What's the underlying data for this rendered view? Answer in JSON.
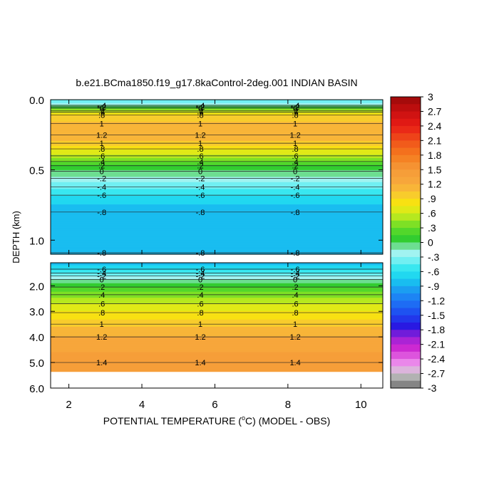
{
  "chart_data": {
    "type": "heatmap",
    "title": "b.e21.BCma1850.f19_g17.8kaControl-2deg.001 INDIAN BASIN",
    "xlabel_main": "POTENTIAL TEMPERATURE (",
    "xlabel_deg": "o",
    "xlabel_tail": "C) (MODEL - OBS)",
    "ylabel": "DEPTH (km)",
    "x_ticks": [
      "2",
      "4",
      "6",
      "8",
      "10"
    ],
    "x_tick_values": [
      2,
      4,
      6,
      8,
      10
    ],
    "xlim": [
      1.5,
      10.6
    ],
    "upper_panel": {
      "ylim": [
        0.0,
        1.1
      ],
      "y_ticks": [
        "0.0",
        "0.5",
        "1.0"
      ],
      "y_tick_values": [
        0.0,
        0.5,
        1.0
      ],
      "profile": [
        {
          "depth": 0.0,
          "value": -0.5
        },
        {
          "depth": 0.02,
          "value": -0.3
        },
        {
          "depth": 0.04,
          "value": -0.1
        },
        {
          "depth": 0.06,
          "value": 0.2
        },
        {
          "depth": 0.08,
          "value": 0.6
        },
        {
          "depth": 0.1,
          "value": 0.85
        },
        {
          "depth": 0.13,
          "value": 1.0
        },
        {
          "depth": 0.2,
          "value": 1.15
        },
        {
          "depth": 0.26,
          "value": 1.2
        },
        {
          "depth": 0.31,
          "value": 1.0
        },
        {
          "depth": 0.35,
          "value": 0.8
        },
        {
          "depth": 0.39,
          "value": 0.6
        },
        {
          "depth": 0.43,
          "value": 0.4
        },
        {
          "depth": 0.46,
          "value": 0.2
        },
        {
          "depth": 0.5,
          "value": 0.0
        },
        {
          "depth": 0.56,
          "value": -0.2
        },
        {
          "depth": 0.62,
          "value": -0.4
        },
        {
          "depth": 0.68,
          "value": -0.6
        },
        {
          "depth": 0.76,
          "value": -0.8
        },
        {
          "depth": 1.1,
          "value": -0.8
        }
      ],
      "contour_labels": [
        {
          "depth": 0.04,
          "text": "-.4"
        },
        {
          "depth": 0.05,
          "text": "-.2"
        },
        {
          "depth": 0.06,
          "text": "0"
        },
        {
          "depth": 0.08,
          "text": ".2"
        },
        {
          "depth": 0.09,
          "text": ".6"
        },
        {
          "depth": 0.11,
          "text": ".8"
        },
        {
          "depth": 0.17,
          "text": "1"
        },
        {
          "depth": 0.25,
          "text": "1.2"
        },
        {
          "depth": 0.31,
          "text": "1"
        },
        {
          "depth": 0.35,
          "text": ".8"
        },
        {
          "depth": 0.4,
          "text": ".6"
        },
        {
          "depth": 0.44,
          "text": ".4"
        },
        {
          "depth": 0.47,
          "text": ".2"
        },
        {
          "depth": 0.51,
          "text": "0"
        },
        {
          "depth": 0.56,
          "text": "-.2"
        },
        {
          "depth": 0.62,
          "text": "-.4"
        },
        {
          "depth": 0.68,
          "text": "-.6"
        },
        {
          "depth": 0.8,
          "text": "-.8"
        },
        {
          "depth": 1.09,
          "text": "-.8"
        }
      ]
    },
    "lower_panel": {
      "ylim": [
        1.1,
        6.0
      ],
      "y_ticks": [
        "2.0",
        "3.0",
        "4.0",
        "5.0",
        "6.0"
      ],
      "y_tick_values": [
        2.0,
        3.0,
        4.0,
        5.0,
        6.0
      ],
      "max_depth": 5.35,
      "profile": [
        {
          "depth": 1.1,
          "value": -0.8
        },
        {
          "depth": 1.3,
          "value": -0.7
        },
        {
          "depth": 1.5,
          "value": -0.5
        },
        {
          "depth": 1.7,
          "value": -0.2
        },
        {
          "depth": 1.9,
          "value": 0.0
        },
        {
          "depth": 2.1,
          "value": 0.2
        },
        {
          "depth": 2.4,
          "value": 0.4
        },
        {
          "depth": 2.7,
          "value": 0.6
        },
        {
          "depth": 3.1,
          "value": 0.8
        },
        {
          "depth": 3.5,
          "value": 1.0
        },
        {
          "depth": 4.0,
          "value": 1.2
        },
        {
          "depth": 4.6,
          "value": 1.35
        },
        {
          "depth": 5.35,
          "value": 1.4
        }
      ],
      "contour_labels": [
        {
          "depth": 1.35,
          "text": "-.6"
        },
        {
          "depth": 1.5,
          "text": "-.4"
        },
        {
          "depth": 1.62,
          "text": "-.2"
        },
        {
          "depth": 1.75,
          "text": "0"
        },
        {
          "depth": 2.05,
          "text": ".2"
        },
        {
          "depth": 2.35,
          "text": ".4"
        },
        {
          "depth": 2.7,
          "text": ".6"
        },
        {
          "depth": 3.05,
          "text": ".8"
        },
        {
          "depth": 3.5,
          "text": "1"
        },
        {
          "depth": 4.0,
          "text": "1.2"
        },
        {
          "depth": 5.0,
          "text": "1.4"
        }
      ]
    },
    "label_x_positions": [
      2.9,
      5.6,
      8.2
    ],
    "colorbar": {
      "min": -3.0,
      "max": 3.0,
      "step": 0.15,
      "tick_labels": [
        "3",
        "2.7",
        "2.4",
        "2.1",
        "1.8",
        "1.5",
        "1.2",
        ".9",
        ".6",
        ".3",
        "0",
        "-.3",
        "-.6",
        "-.9",
        "-1.2",
        "-1.5",
        "-1.8",
        "-2.1",
        "-2.4",
        "-2.7",
        "-3"
      ],
      "tick_values": [
        3.0,
        2.7,
        2.4,
        2.1,
        1.8,
        1.5,
        1.2,
        0.9,
        0.6,
        0.3,
        0.0,
        -0.3,
        -0.6,
        -0.9,
        -1.2,
        -1.5,
        -1.8,
        -2.1,
        -2.4,
        -2.7,
        -3.0
      ],
      "color_stops": [
        {
          "v": -3.0,
          "c": "#6e6e6e"
        },
        {
          "v": -2.7,
          "c": "#c8c8c8"
        },
        {
          "v": -2.55,
          "c": "#f0a0f0"
        },
        {
          "v": -2.2,
          "c": "#d22ad2"
        },
        {
          "v": -1.95,
          "c": "#9a20d6"
        },
        {
          "v": -1.75,
          "c": "#2a14e0"
        },
        {
          "v": -1.5,
          "c": "#1e46f0"
        },
        {
          "v": -1.2,
          "c": "#1e78f5"
        },
        {
          "v": -0.9,
          "c": "#1aaaf0"
        },
        {
          "v": -0.75,
          "c": "#18d0f0"
        },
        {
          "v": -0.55,
          "c": "#30e6f0"
        },
        {
          "v": -0.35,
          "c": "#7af0f2"
        },
        {
          "v": -0.15,
          "c": "#b8f4f0"
        },
        {
          "v": 0.0,
          "c": "#22c832"
        },
        {
          "v": 0.3,
          "c": "#62dc28"
        },
        {
          "v": 0.6,
          "c": "#d2ec1c"
        },
        {
          "v": 0.8,
          "c": "#f8e40e"
        },
        {
          "v": 1.0,
          "c": "#f8c830"
        },
        {
          "v": 1.2,
          "c": "#f8aa3c"
        },
        {
          "v": 1.5,
          "c": "#f59a38"
        },
        {
          "v": 1.8,
          "c": "#f57a1e"
        },
        {
          "v": 2.1,
          "c": "#f0501a"
        },
        {
          "v": 2.4,
          "c": "#e81c16"
        },
        {
          "v": 2.7,
          "c": "#c81010"
        },
        {
          "v": 3.0,
          "c": "#9a0a0a"
        }
      ]
    }
  }
}
